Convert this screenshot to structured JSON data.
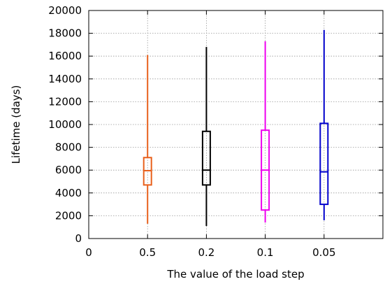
{
  "chart_data": {
    "type": "box",
    "title": "",
    "xlabel": "The value of the load step",
    "ylabel": "Lifetime (days)",
    "ylim": [
      0,
      20000
    ],
    "yticks": [
      0,
      2000,
      4000,
      6000,
      8000,
      10000,
      12000,
      14000,
      16000,
      18000,
      20000
    ],
    "xlim": [
      0,
      5
    ],
    "xticks": [
      {
        "pos": 0,
        "label": "0"
      },
      {
        "pos": 1,
        "label": "0.5"
      },
      {
        "pos": 2,
        "label": "0.2"
      },
      {
        "pos": 3,
        "label": "0.1"
      },
      {
        "pos": 4,
        "label": "0.05"
      }
    ],
    "grid": true,
    "series": [
      {
        "category": "0.5",
        "x": 1,
        "min": 1300,
        "q1": 4700,
        "median": 5950,
        "q3": 7100,
        "max": 16100,
        "color": "#e8601c"
      },
      {
        "category": "0.2",
        "x": 2,
        "min": 1100,
        "q1": 4700,
        "median": 6000,
        "q3": 9400,
        "max": 16800,
        "color": "#000000"
      },
      {
        "category": "0.1",
        "x": 3,
        "min": 1400,
        "q1": 2500,
        "median": 6000,
        "q3": 9500,
        "max": 17300,
        "color": "#ee00ee"
      },
      {
        "category": "0.05",
        "x": 4,
        "min": 1600,
        "q1": 3000,
        "median": 5850,
        "q3": 10100,
        "max": 18300,
        "color": "#0000cc"
      }
    ]
  }
}
